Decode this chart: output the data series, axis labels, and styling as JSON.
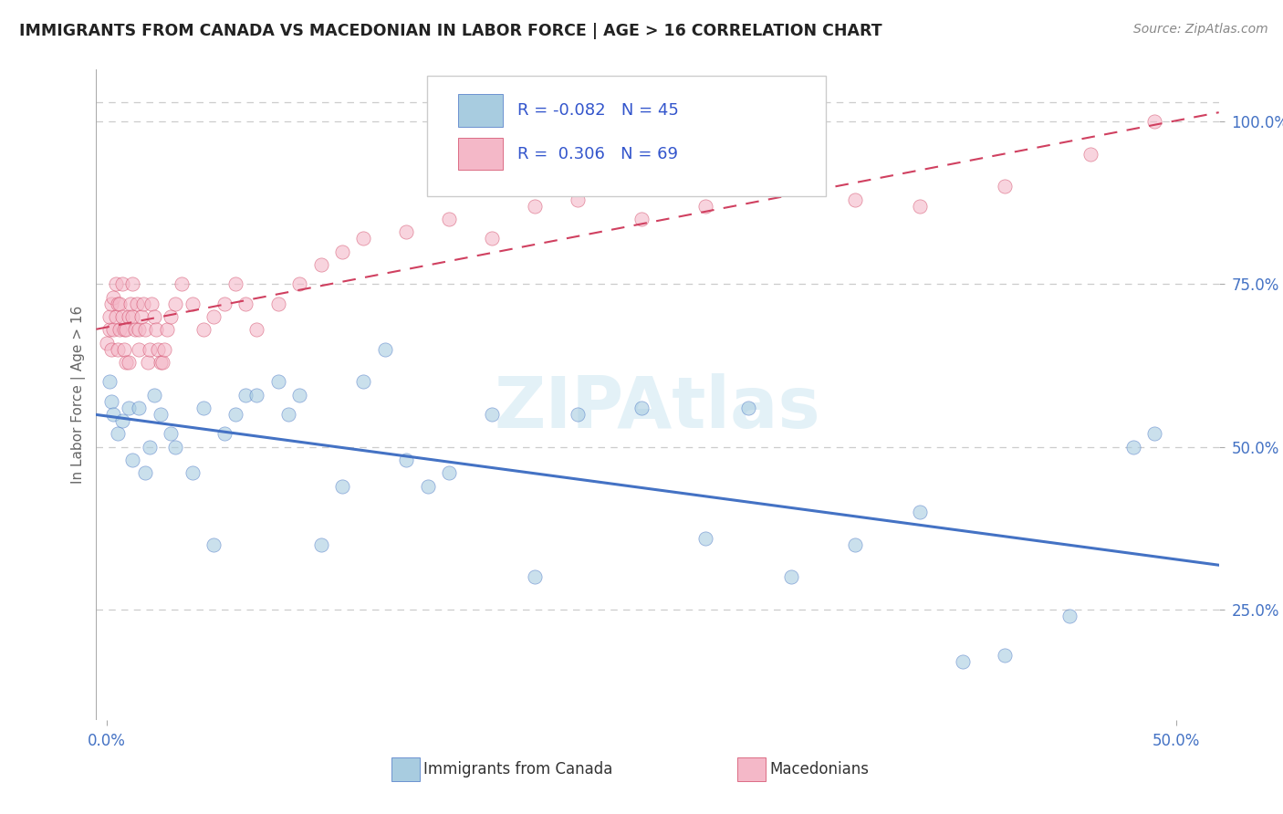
{
  "title": "IMMIGRANTS FROM CANADA VS MACEDONIAN IN LABOR FORCE | AGE > 16 CORRELATION CHART",
  "source_text": "Source: ZipAtlas.com",
  "ylabel": "In Labor Force | Age > 16",
  "ytick_labels": [
    "25.0%",
    "50.0%",
    "75.0%",
    "100.0%"
  ],
  "ytick_values": [
    0.25,
    0.5,
    0.75,
    1.0
  ],
  "xtick_labels": [
    "0.0%",
    "50.0%"
  ],
  "xtick_values": [
    0.0,
    0.5
  ],
  "xlim": [
    -0.005,
    0.52
  ],
  "ylim": [
    0.08,
    1.08
  ],
  "legend_label1": "Immigrants from Canada",
  "legend_label2": "Macedonians",
  "R1": "-0.082",
  "N1": "45",
  "R2": "0.306",
  "N2": "69",
  "watermark": "ZIPAtlas",
  "blue_scatter_color": "#a8cce0",
  "blue_line_color": "#4472c4",
  "pink_scatter_color": "#f4b8c8",
  "pink_line_color": "#d04060",
  "title_color": "#222222",
  "source_color": "#888888",
  "axis_tick_color": "#4472c4",
  "grid_color": "#cccccc",
  "canada_x": [
    0.001,
    0.002,
    0.003,
    0.005,
    0.007,
    0.01,
    0.012,
    0.015,
    0.018,
    0.02,
    0.022,
    0.025,
    0.03,
    0.032,
    0.04,
    0.045,
    0.05,
    0.055,
    0.06,
    0.065,
    0.07,
    0.08,
    0.085,
    0.09,
    0.1,
    0.11,
    0.12,
    0.13,
    0.14,
    0.15,
    0.16,
    0.18,
    0.2,
    0.22,
    0.25,
    0.28,
    0.3,
    0.32,
    0.35,
    0.38,
    0.4,
    0.42,
    0.45,
    0.48,
    0.49
  ],
  "canada_y": [
    0.6,
    0.57,
    0.55,
    0.52,
    0.54,
    0.56,
    0.48,
    0.56,
    0.46,
    0.5,
    0.58,
    0.55,
    0.52,
    0.5,
    0.46,
    0.56,
    0.35,
    0.52,
    0.55,
    0.58,
    0.58,
    0.6,
    0.55,
    0.58,
    0.35,
    0.44,
    0.6,
    0.65,
    0.48,
    0.44,
    0.46,
    0.55,
    0.3,
    0.55,
    0.56,
    0.36,
    0.56,
    0.3,
    0.35,
    0.4,
    0.17,
    0.18,
    0.24,
    0.5,
    0.52
  ],
  "macd_x": [
    0.0,
    0.001,
    0.001,
    0.002,
    0.002,
    0.003,
    0.003,
    0.004,
    0.004,
    0.005,
    0.005,
    0.006,
    0.006,
    0.007,
    0.007,
    0.008,
    0.008,
    0.009,
    0.009,
    0.01,
    0.01,
    0.011,
    0.012,
    0.012,
    0.013,
    0.014,
    0.015,
    0.015,
    0.016,
    0.017,
    0.018,
    0.019,
    0.02,
    0.021,
    0.022,
    0.023,
    0.024,
    0.025,
    0.026,
    0.027,
    0.028,
    0.03,
    0.032,
    0.035,
    0.04,
    0.045,
    0.05,
    0.055,
    0.06,
    0.065,
    0.07,
    0.08,
    0.09,
    0.1,
    0.11,
    0.12,
    0.14,
    0.16,
    0.18,
    0.2,
    0.22,
    0.25,
    0.28,
    0.32,
    0.35,
    0.38,
    0.42,
    0.46,
    0.49
  ],
  "macd_y": [
    0.66,
    0.68,
    0.7,
    0.72,
    0.65,
    0.68,
    0.73,
    0.7,
    0.75,
    0.72,
    0.65,
    0.68,
    0.72,
    0.7,
    0.75,
    0.68,
    0.65,
    0.63,
    0.68,
    0.63,
    0.7,
    0.72,
    0.75,
    0.7,
    0.68,
    0.72,
    0.65,
    0.68,
    0.7,
    0.72,
    0.68,
    0.63,
    0.65,
    0.72,
    0.7,
    0.68,
    0.65,
    0.63,
    0.63,
    0.65,
    0.68,
    0.7,
    0.72,
    0.75,
    0.72,
    0.68,
    0.7,
    0.72,
    0.75,
    0.72,
    0.68,
    0.72,
    0.75,
    0.78,
    0.8,
    0.82,
    0.83,
    0.85,
    0.82,
    0.87,
    0.88,
    0.85,
    0.87,
    0.9,
    0.88,
    0.87,
    0.9,
    0.95,
    1.0
  ]
}
